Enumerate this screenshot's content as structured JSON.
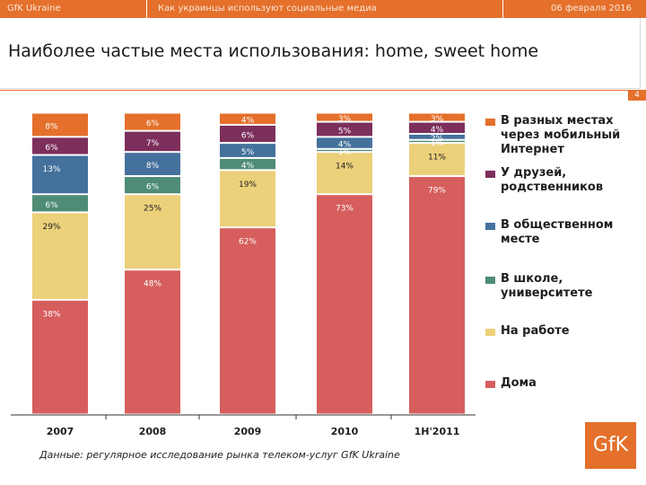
{
  "header": {
    "left": "GfK Ukraine",
    "center": "Как украинцы используют социальные медиа",
    "right": "06 февраля 2016"
  },
  "page_title": "Наиболее частые места использования: home, sweet home",
  "page_number": "4",
  "footnote": "Данные: регулярное исследование рынка телеком-услуг GfK Ukraine",
  "logo_text": "GfK",
  "colors": {
    "orange": "#e4702b",
    "purple": "#7d2f5c",
    "blue": "#44719c",
    "green": "#4f8c75",
    "yellow": "#ecd07a",
    "red": "#d65e5d"
  },
  "chart_data": {
    "type": "stacked-bar",
    "y_unit": "%",
    "ylim": [
      0,
      100
    ],
    "categories": [
      "2007",
      "2008",
      "2009",
      "2010",
      "1H'2011"
    ],
    "series": [
      {
        "key": "home",
        "name": "Дома",
        "color": "#d65e5d",
        "values": [
          38,
          48,
          62,
          73,
          79
        ],
        "labels": [
          "38%",
          "48%",
          "62%",
          "73%",
          "79%"
        ]
      },
      {
        "key": "work",
        "name": "На работе",
        "color": "#ecd07a",
        "values": [
          29,
          25,
          19,
          14,
          11
        ],
        "labels": [
          "29%",
          "25%",
          "19%",
          "14%",
          "11%"
        ]
      },
      {
        "key": "school",
        "name": "В школе, университете",
        "color": "#4f8c75",
        "values": [
          6,
          6,
          4,
          1,
          1
        ],
        "labels": [
          "6%",
          "6%",
          "4%",
          "1%",
          "1%"
        ]
      },
      {
        "key": "public",
        "name": "В общественном месте",
        "color": "#44719c",
        "values": [
          13,
          8,
          5,
          4,
          2
        ],
        "labels": [
          "13%",
          "8%",
          "5%",
          "4%",
          "2%"
        ]
      },
      {
        "key": "friends",
        "name": "У друзей, родственников",
        "color": "#7d2f5c",
        "values": [
          6,
          7,
          6,
          5,
          4
        ],
        "labels": [
          "6%",
          "7%",
          "6%",
          "5%",
          "4%"
        ]
      },
      {
        "key": "mobile",
        "name": "В разных местах через мобильный Интернет",
        "color": "#e4702b",
        "values": [
          8,
          6,
          4,
          3,
          3
        ],
        "labels": [
          "8%",
          "6%",
          "4%",
          "3%",
          "3%"
        ]
      }
    ],
    "legend_order": [
      "mobile",
      "friends",
      "public",
      "school",
      "work",
      "home"
    ],
    "legend_position": "right"
  }
}
